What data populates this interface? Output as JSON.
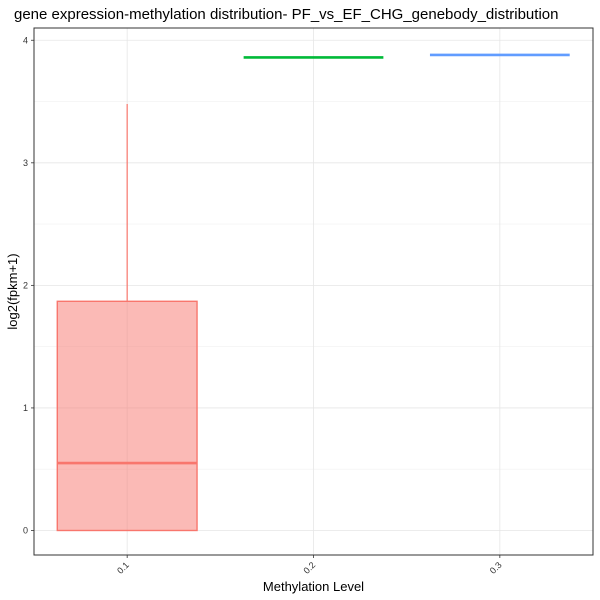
{
  "chart_data": {
    "type": "boxplot",
    "title": "gene expression-methylation distribution- PF_vs_EF_CHG_genebody_distribution",
    "xlabel": "Methylation Level",
    "ylabel": "log2(fpkm+1)",
    "categories": [
      "0.1",
      "0.2",
      "0.3"
    ],
    "ylim": [
      -0.2,
      4.1
    ],
    "yticks": [
      0,
      1,
      2,
      3,
      4
    ],
    "grid": true,
    "legend": "none",
    "boxes": [
      {
        "category": "0.1",
        "min": 0.0,
        "q1": 0.0,
        "median": 0.55,
        "q3": 1.87,
        "max": 3.48,
        "color": "#F8766D",
        "fill": "#F8766D"
      },
      {
        "category": "0.2",
        "min": 3.86,
        "q1": 3.86,
        "median": 3.86,
        "q3": 3.86,
        "max": 3.86,
        "color": "#00BA38",
        "fill": "#00BA38"
      },
      {
        "category": "0.3",
        "min": 3.88,
        "q1": 3.88,
        "median": 3.88,
        "q3": 3.88,
        "max": 3.88,
        "color": "#619CFF",
        "fill": "#619CFF"
      }
    ]
  }
}
